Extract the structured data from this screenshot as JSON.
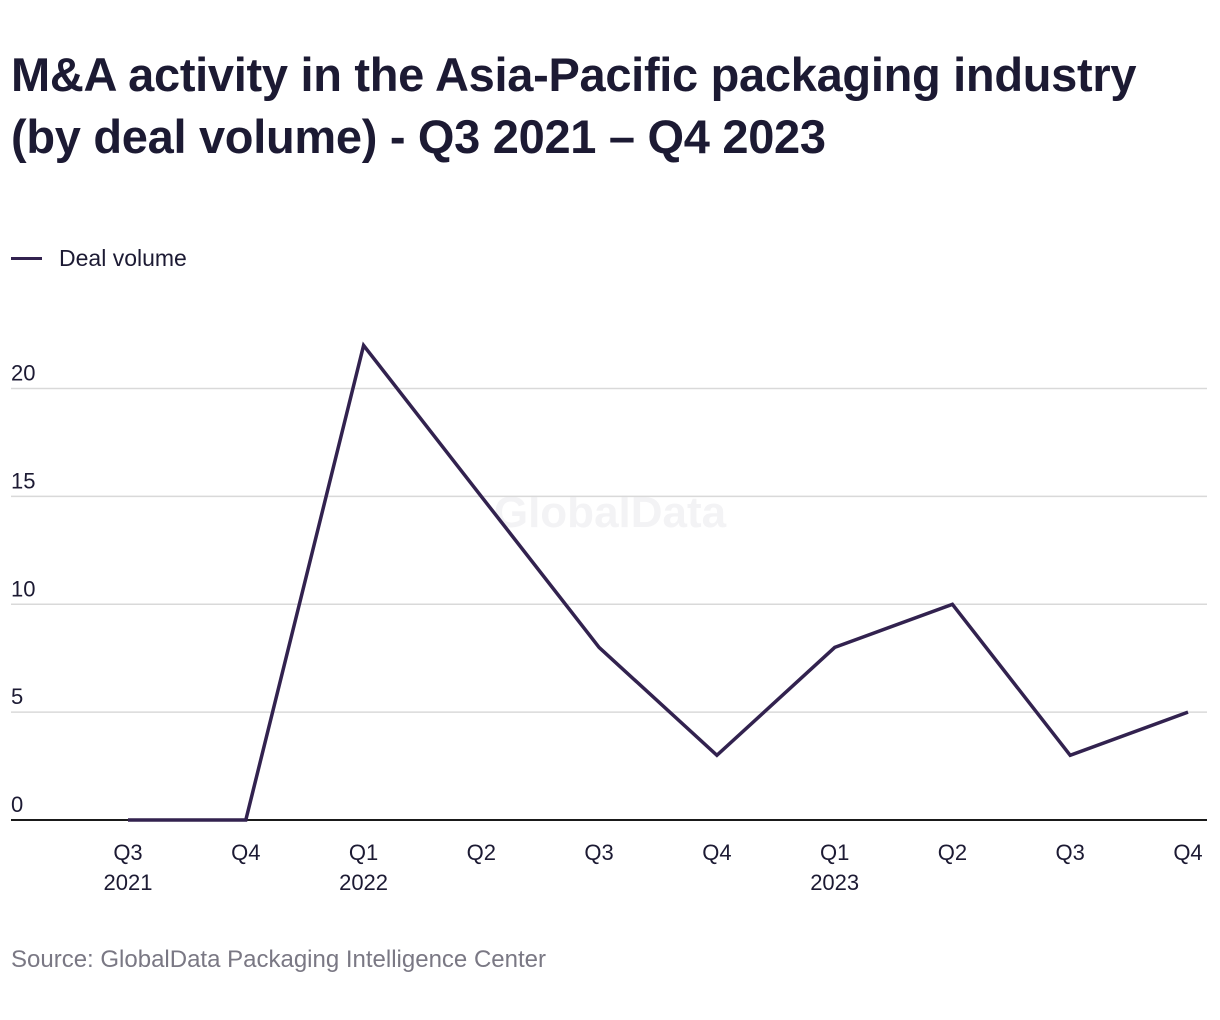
{
  "title": "M&A activity in the Asia-Pacific packaging industry (by deal volume) - Q3 2021 – Q4 2023",
  "legend": {
    "label": "Deal volume"
  },
  "source": "Source: GlobalData Packaging Intelligence Center",
  "watermark": "GlobalData",
  "colors": {
    "line": "#32224f",
    "grid": "#d9d9d9",
    "axis": "#1a1a1a",
    "text": "#1c1a33",
    "muted": "#7a7884"
  },
  "chart_data": {
    "type": "line",
    "title": "M&A activity in the Asia-Pacific packaging industry (by deal volume) - Q3 2021 – Q4 2023",
    "xlabel": "",
    "ylabel": "",
    "categories": [
      "Q3 2021",
      "Q4 2021",
      "Q1 2022",
      "Q2 2022",
      "Q3 2022",
      "Q4 2022",
      "Q1 2023",
      "Q2 2023",
      "Q3 2023",
      "Q4 2023"
    ],
    "tick_labels": [
      [
        "Q3",
        "2021"
      ],
      [
        "Q4"
      ],
      [
        "Q1",
        "2022"
      ],
      [
        "Q2"
      ],
      [
        "Q3"
      ],
      [
        "Q4"
      ],
      [
        "Q1",
        "2023"
      ],
      [
        "Q2"
      ],
      [
        "Q3"
      ],
      [
        "Q4"
      ]
    ],
    "series": [
      {
        "name": "Deal volume",
        "values": [
          0,
          0,
          22,
          15,
          8,
          3,
          8,
          10,
          3,
          5
        ]
      }
    ],
    "y_ticks": [
      0,
      5,
      10,
      15,
      20
    ],
    "ylim": [
      0,
      22.9
    ],
    "grid": true,
    "legend_position": "top-left"
  }
}
